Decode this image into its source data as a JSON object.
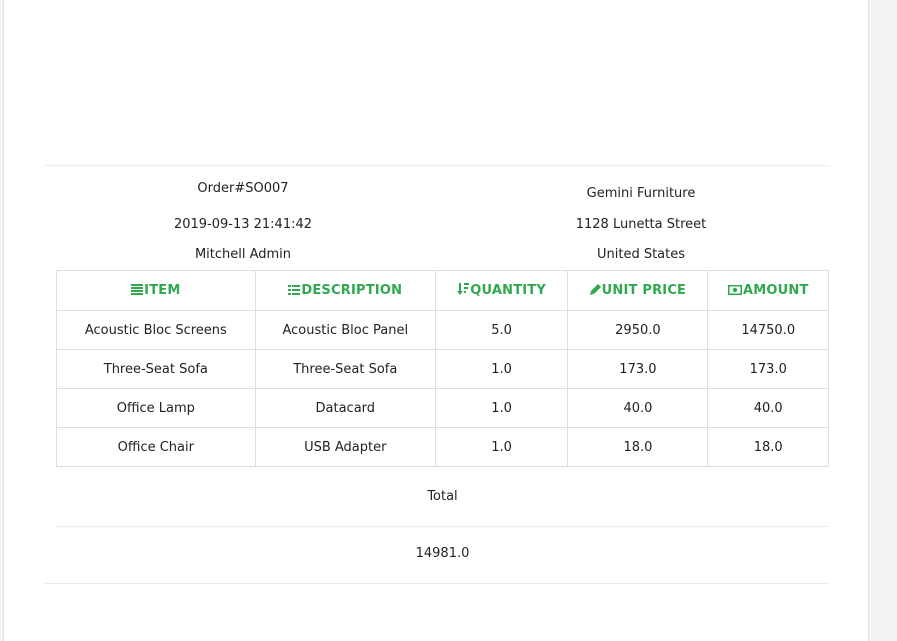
{
  "order": {
    "number": "Order#SO007",
    "datetime": "2019-09-13 21:41:42",
    "salesperson": "Mitchell Admin"
  },
  "company": {
    "name": "Gemini Furniture",
    "street": "1128 Lunetta Street",
    "country": "United States"
  },
  "table": {
    "headers": [
      {
        "label": "ITEM",
        "icon": "list-icon"
      },
      {
        "label": "DESCRIPTION",
        "icon": "grid-icon"
      },
      {
        "label": "QUANTITY",
        "icon": "sort-amount-icon"
      },
      {
        "label": "UNIT PRICE",
        "icon": "pencil-icon"
      },
      {
        "label": "AMOUNT",
        "icon": "money-icon"
      }
    ],
    "rows": [
      {
        "item": "Acoustic Bloc Screens",
        "description": "Acoustic Bloc Panel",
        "quantity": "5.0",
        "unit_price": "2950.0",
        "amount": "14750.0"
      },
      {
        "item": "Three-Seat Sofa",
        "description": "Three-Seat Sofa",
        "quantity": "1.0",
        "unit_price": "173.0",
        "amount": "173.0"
      },
      {
        "item": "Office Lamp",
        "description": "Datacard",
        "quantity": "1.0",
        "unit_price": "40.0",
        "amount": "40.0"
      },
      {
        "item": "Office Chair",
        "description": "USB Adapter",
        "quantity": "1.0",
        "unit_price": "18.0",
        "amount": "18.0"
      }
    ]
  },
  "total": {
    "label": "Total",
    "value": "14981.0"
  },
  "colors": {
    "header_accent": "#2fa84f",
    "border": "#dedede"
  }
}
